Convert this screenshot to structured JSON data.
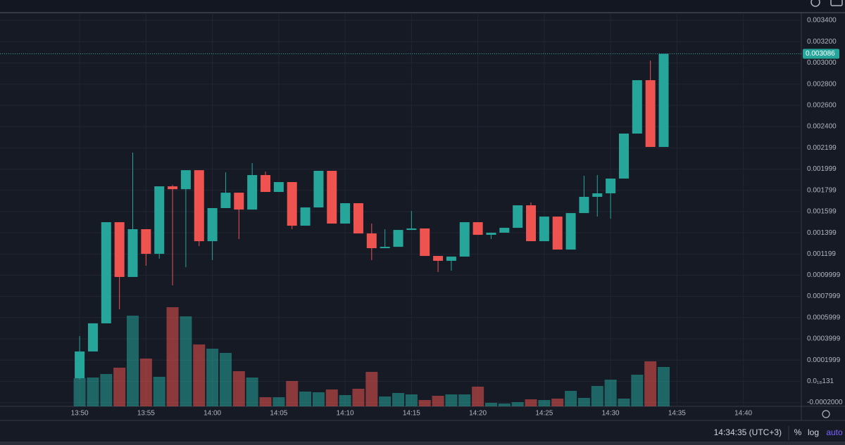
{
  "chart_data": {
    "type": "candlestick",
    "open": [
      2.9e-05,
      0.000281,
      0.000546,
      0.001499,
      0.000983,
      0.001433,
      0.001201,
      0.001837,
      0.00181,
      0.001989,
      0.00132,
      0.001632,
      0.001777,
      0.001618,
      0.001943,
      0.001784,
      0.001877,
      0.001466,
      0.001638,
      0.001983,
      0.001486,
      0.001678,
      0.001393,
      0.001254,
      0.001267,
      0.001426,
      0.00144,
      0.001181,
      0.001135,
      0.001175,
      0.001499,
      0.00138,
      0.0014,
      0.001446,
      0.001658,
      0.00132,
      0.001552,
      0.001241,
      0.001585,
      0.001738,
      0.001771,
      0.00191,
      0.002334,
      0.002837,
      0.002208
    ],
    "high": [
      0.000426,
      0.000546,
      0.001499,
      0.001499,
      0.002155,
      0.001433,
      0.001837,
      0.00185,
      0.001989,
      0.001989,
      0.001632,
      0.001969,
      0.001777,
      0.002056,
      0.001976,
      0.001877,
      0.001877,
      0.001638,
      0.001983,
      0.001983,
      0.001678,
      0.001678,
      0.001486,
      0.001433,
      0.001426,
      0.001605,
      0.00144,
      0.001181,
      0.001175,
      0.001499,
      0.001499,
      0.0014,
      0.001446,
      0.001658,
      0.001685,
      0.001552,
      0.001552,
      0.001585,
      0.001936,
      0.001943,
      0.00191,
      0.002334,
      0.002837,
      0.003022,
      0.003086
    ],
    "low": [
      1.6e-05,
      0.000281,
      0.000546,
      0.000678,
      0.000983,
      0.001089,
      0.001155,
      0.000903,
      0.001075,
      0.001274,
      0.001142,
      0.001632,
      0.00134,
      0.001618,
      0.001784,
      0.001784,
      0.001433,
      0.001466,
      0.001638,
      0.001486,
      0.001486,
      0.001393,
      0.001142,
      0.001254,
      0.001267,
      0.001426,
      0.001181,
      0.001029,
      0.001042,
      0.001175,
      0.00138,
      0.00134,
      0.0014,
      0.001446,
      0.00132,
      0.00132,
      0.001241,
      0.001241,
      0.001585,
      0.001552,
      0.001532,
      0.00191,
      0.002334,
      0.002208,
      0.002208
    ],
    "close": [
      0.000281,
      0.000546,
      0.001499,
      0.000983,
      0.001433,
      0.001201,
      0.001837,
      0.00181,
      0.001989,
      0.00132,
      0.001632,
      0.001777,
      0.001618,
      0.001943,
      0.001784,
      0.001877,
      0.001466,
      0.001638,
      0.001983,
      0.001486,
      0.001678,
      0.001393,
      0.001254,
      0.001267,
      0.001426,
      0.00144,
      0.001181,
      0.001135,
      0.001175,
      0.001499,
      0.00138,
      0.0014,
      0.001446,
      0.001658,
      0.00132,
      0.001552,
      0.001241,
      0.001585,
      0.001738,
      0.001771,
      0.00191,
      0.002334,
      0.002837,
      0.002208,
      0.003086
    ],
    "volume": [
      40,
      41,
      46,
      55,
      129,
      68,
      42,
      141,
      128,
      88,
      82,
      76,
      50,
      41,
      13,
      13,
      36,
      21,
      20,
      24,
      16,
      25,
      49,
      14,
      19,
      17,
      9,
      15,
      17,
      17,
      28,
      5,
      4,
      6,
      10,
      9,
      11,
      22,
      12,
      29,
      38,
      11,
      45,
      64,
      56
    ],
    "up_color": "#26a69a",
    "down_color": "#ef5350",
    "ylim": [
      -0.000236,
      0.00346
    ],
    "yticks": [
      {
        "value": 0.0034,
        "label": "0.003400"
      },
      {
        "value": 0.0032,
        "label": "0.003200"
      },
      {
        "value": 0.003,
        "label": "0.003000"
      },
      {
        "value": 0.0028,
        "label": "0.002800"
      },
      {
        "value": 0.0026,
        "label": "0.002600"
      },
      {
        "value": 0.0024,
        "label": "0.002400"
      },
      {
        "value": 0.002199,
        "label": "0.002199"
      },
      {
        "value": 0.001999,
        "label": "0.001999"
      },
      {
        "value": 0.001799,
        "label": "0.001799"
      },
      {
        "value": 0.001599,
        "label": "0.001599"
      },
      {
        "value": 0.001399,
        "label": "0.001399"
      },
      {
        "value": 0.001199,
        "label": "0.001199"
      },
      {
        "value": 0.0009999,
        "label": "0.0009999"
      },
      {
        "value": 0.0007999,
        "label": "0.0007999"
      },
      {
        "value": 0.0005999,
        "label": "0.0005999"
      },
      {
        "value": 0.0003999,
        "label": "0.0003999"
      },
      {
        "value": 0.0001999,
        "label": "0.0001999"
      },
      {
        "value": 0,
        "label": "0.0₁₈131"
      },
      {
        "value": -0.0002,
        "label": "-0.0002000"
      }
    ],
    "xlim": [
      -6,
      54.37
    ],
    "xticks": [
      {
        "value": 0,
        "label": "13:50"
      },
      {
        "value": 5,
        "label": "13:55"
      },
      {
        "value": 10,
        "label": "14:00"
      },
      {
        "value": 15,
        "label": "14:05"
      },
      {
        "value": 20,
        "label": "14:10"
      },
      {
        "value": 25,
        "label": "14:15"
      },
      {
        "value": 30,
        "label": "14:20"
      },
      {
        "value": 35,
        "label": "14:25"
      },
      {
        "value": 40,
        "label": "14:30"
      },
      {
        "value": 45,
        "label": "14:35"
      },
      {
        "value": 50,
        "label": "14:40"
      }
    ],
    "last_price": 0.003086,
    "grid": true
  },
  "footer": {
    "clock": "14:34:35 (UTC+3)",
    "percent": "%",
    "log": "log",
    "auto": "auto"
  }
}
